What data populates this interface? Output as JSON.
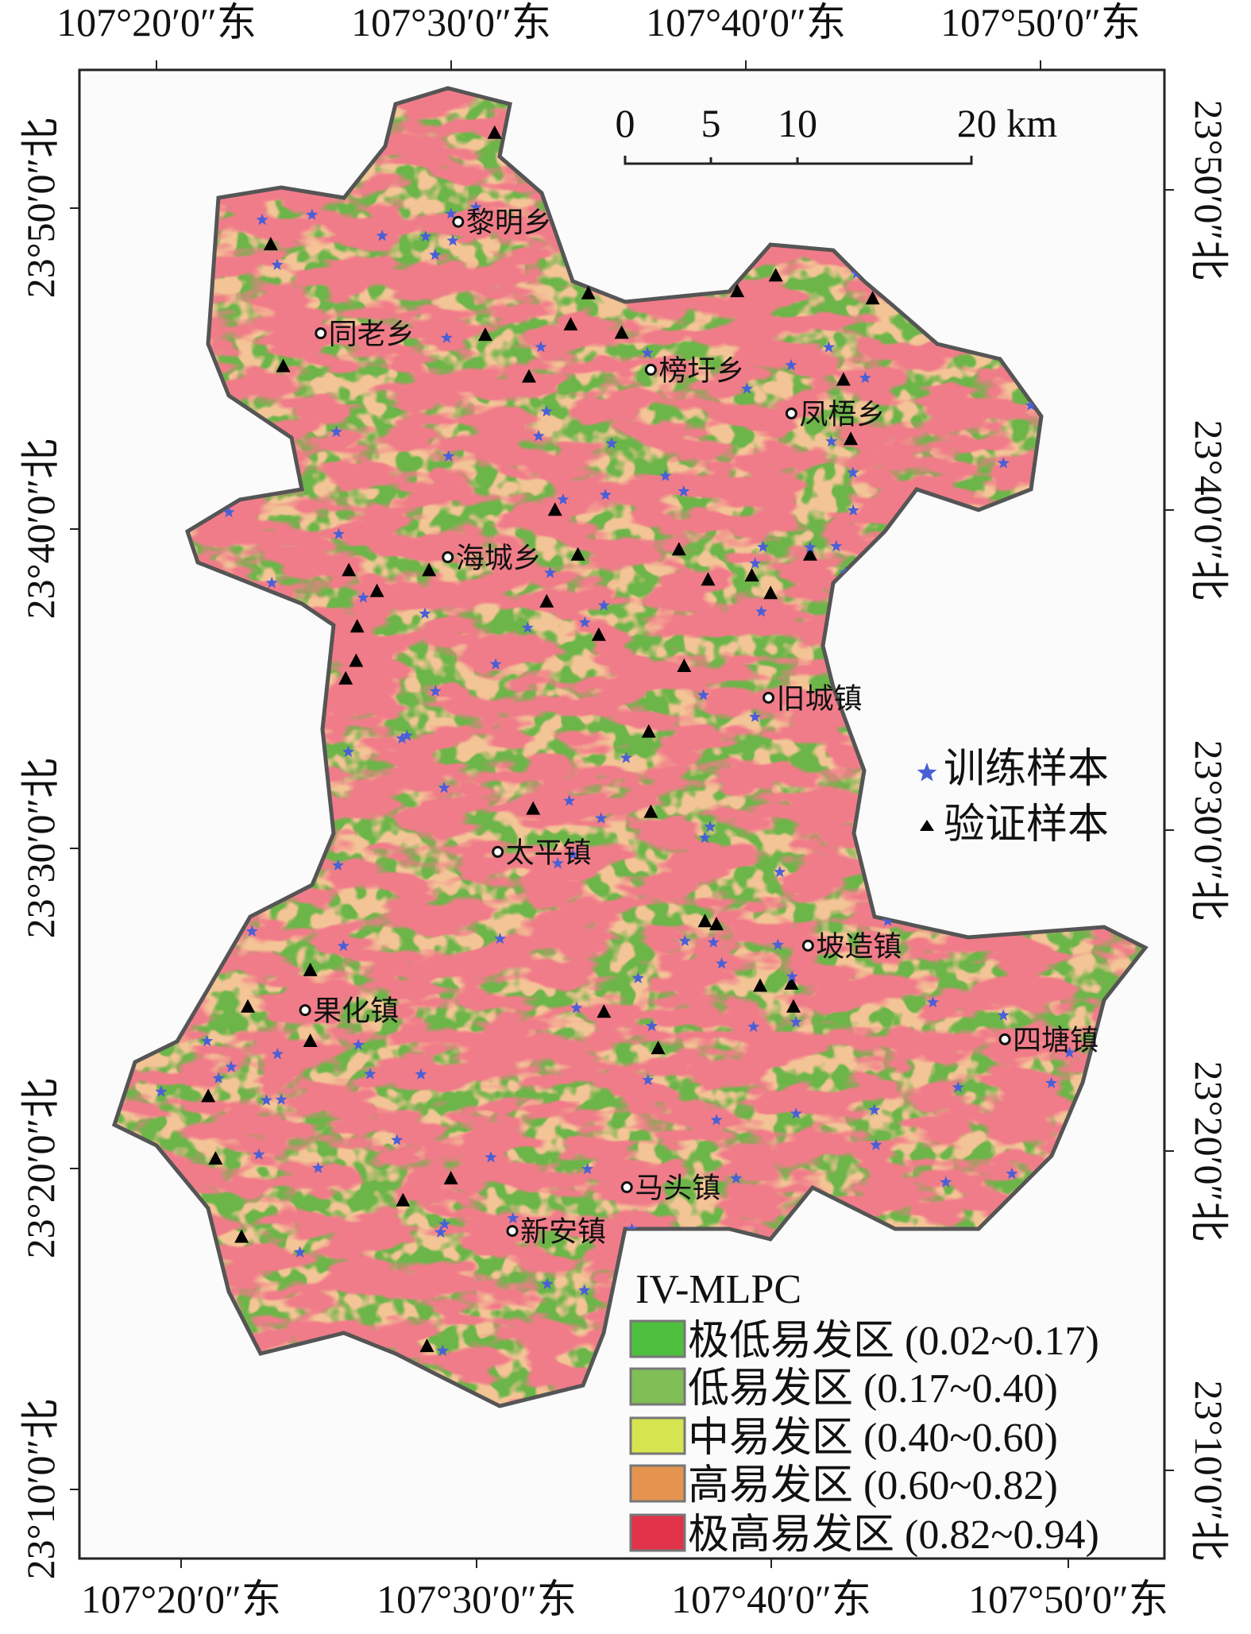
{
  "map": {
    "top_lon_labels": [
      "107°20′0″东",
      "107°30′0″东",
      "107°40′0″东",
      "107°50′0″东"
    ],
    "bottom_lon_labels": [
      "107°20′0″东",
      "107°30′0″东",
      "107°40′0″东",
      "107°50′0″东"
    ],
    "left_lat_labels": [
      "23°50′0″北",
      "23°40′0″北",
      "23°30′0″北",
      "23°20′0″北",
      "23°10′0″北"
    ],
    "right_lat_labels": [
      "23°50′0″北",
      "23°40′0″北",
      "23°30′0″北",
      "23°20′0″北",
      "23°10′0″北"
    ],
    "scale_bar": {
      "ticks": [
        "0",
        "5",
        "10",
        "20 km"
      ]
    },
    "towns": [
      "黎明乡",
      "同老乡",
      "榜圩乡",
      "凤梧乡",
      "海城乡",
      "旧城镇",
      "太平镇",
      "坡造镇",
      "果化镇",
      "四塘镇",
      "马头镇",
      "新安镇"
    ],
    "sample_legend": [
      {
        "symbol": "star",
        "label": "训练样本",
        "color": "#4a5fd6"
      },
      {
        "symbol": "triangle",
        "label": "验证样本",
        "color": "#000000"
      }
    ],
    "legend": {
      "title": "IV-MLPC",
      "items": [
        {
          "label": "极低易发区 (0.02~0.17)",
          "color": "#4fbf3f"
        },
        {
          "label": "低易发区 (0.17~0.40)",
          "color": "#7fbf55"
        },
        {
          "label": "中易发区 (0.40~0.60)",
          "color": "#d6e44f"
        },
        {
          "label": "高易发区 (0.60~0.82)",
          "color": "#e59450"
        },
        {
          "label": "极高易发区 (0.82~0.94)",
          "color": "#e0334a"
        }
      ]
    }
  }
}
